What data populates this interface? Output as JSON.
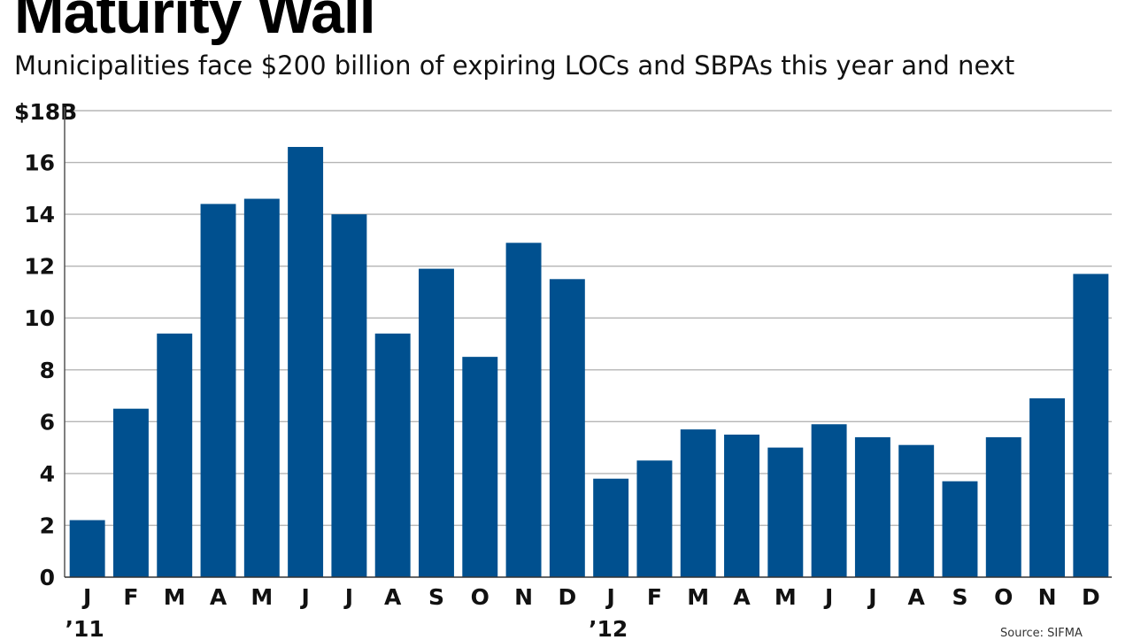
{
  "chart_data": {
    "type": "bar",
    "title": "Maturity Wall",
    "subtitle": "Municipalities face $200 billion of expiring LOCs and SBPAs this year and next",
    "ylabel": "$18B",
    "xlabel": "",
    "ylim": [
      0,
      18
    ],
    "yticks": [
      0,
      2,
      4,
      6,
      8,
      10,
      12,
      14,
      16
    ],
    "top_tick_label": "$18B",
    "grid": true,
    "categories": [
      "J",
      "F",
      "M",
      "A",
      "M",
      "J",
      "J",
      "A",
      "S",
      "O",
      "N",
      "D",
      "J",
      "F",
      "M",
      "A",
      "M",
      "J",
      "J",
      "A",
      "S",
      "O",
      "N",
      "D"
    ],
    "year_labels": [
      {
        "index": 0,
        "label": "’11"
      },
      {
        "index": 12,
        "label": "’12"
      }
    ],
    "series": [
      {
        "name": "Expiring LOCs and SBPAs",
        "color": "#00508f",
        "values": [
          2.2,
          6.5,
          9.4,
          14.4,
          14.6,
          16.6,
          14.0,
          9.4,
          11.9,
          8.5,
          12.9,
          11.5,
          3.8,
          4.5,
          5.7,
          5.5,
          5.0,
          5.9,
          5.4,
          5.1,
          3.7,
          5.4,
          6.9,
          11.7
        ]
      }
    ],
    "source": "Source: SIFMA"
  }
}
